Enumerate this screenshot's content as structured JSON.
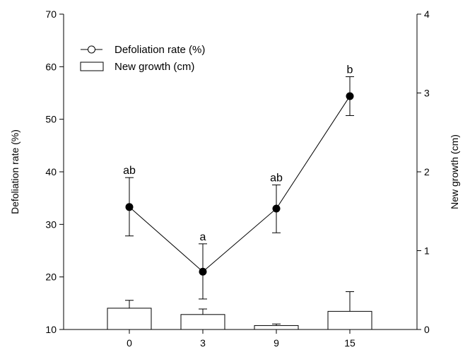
{
  "chart_data": {
    "type": "bar",
    "title": "",
    "xlabel": "",
    "categories": [
      "0",
      "3",
      "9",
      "15"
    ],
    "y_left": {
      "label": "Defoliation rate (%)",
      "range": [
        10,
        70
      ],
      "ticks": [
        "10",
        "20",
        "30",
        "40",
        "50",
        "60",
        "70"
      ]
    },
    "y_right": {
      "label": "New growth (cm)",
      "range": [
        0,
        4
      ],
      "ticks": [
        "0",
        "1",
        "2",
        "3",
        "4"
      ]
    },
    "series": [
      {
        "name": "Defoliation rate (%)",
        "type": "line",
        "axis": "left",
        "marker": "filled-circle",
        "values": [
          33.3,
          21.0,
          33.0,
          54.4
        ],
        "error_upper": [
          38.9,
          26.3,
          37.5,
          58.1
        ],
        "error_lower": [
          27.8,
          15.8,
          28.4,
          50.7
        ],
        "labels": [
          "ab",
          "a",
          "ab",
          "b"
        ]
      },
      {
        "name": "New growth (cm)",
        "type": "bar",
        "axis": "right",
        "values": [
          0.27,
          0.19,
          0.05,
          0.23
        ],
        "error_upper": [
          0.37,
          0.26,
          0.07,
          0.48
        ]
      }
    ],
    "legend": {
      "position": "top-left",
      "entries": [
        "Defoliation rate (%)",
        "New growth (cm)"
      ]
    },
    "grid": false
  }
}
